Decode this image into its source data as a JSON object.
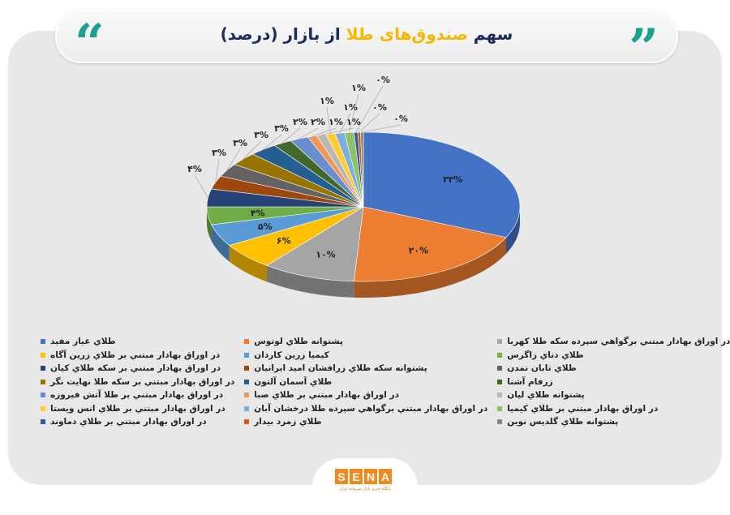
{
  "header": {
    "title_prefix": "سهم",
    "title_highlight": "صندوق‌های طلا",
    "title_suffix": "از بازار (درصد)"
  },
  "footer": {
    "logo_letters": [
      "S",
      "E",
      "N",
      "A"
    ],
    "logo_text": "SENA",
    "logo_subtitle": "پایگاه خبری بازار سرمایه ایران"
  },
  "chart_data": {
    "type": "pie",
    "title": "سهم صندوق‌های طلا از بازار (درصد)",
    "style": "3d",
    "legend_position": "bottom",
    "categories": [
      "طلاي عيار مفيد",
      "پشتوانه طلاي لوتوس",
      "در اوراق بهادار مبتني برگواهي سپرده سكه طلا كهربا",
      "در اوراق بهادار مبتني بر طلاي زرين آگاه",
      "كيميا زرين كاردان",
      "طلاي دناي زاگرس",
      "در اوراق بهادار مبتني بر سكه طلاي كيان",
      "پشتوانه سكه طلاي زرافشان اميد ايرانيان",
      "طلاي تابان تمدن",
      "در اوراق بهادار مبتني بر سكه طلا نهايت نگر",
      "طلاي آسمان آلتون",
      "زرفام آشنا",
      "در اوراق بهادار مبتني بر طلا آتش فيروزه",
      "در اوراق بهادار مبتني بر طلاي صبا",
      "پشتوانه طلاي ليان",
      "در اوراق بهادار مبتني بر طلاي انس ويستا",
      "در اوراق بهادار مبتني برگواهي سپرده طلا درخشان آبان",
      "در اوراق بهادار مبتني بر طلاي كيميا",
      "در اوراق بهادار مبتني بر طلاي دماوند",
      "طلاي زمرد بيدار",
      "پشتوانه طلاي گلديس نوين"
    ],
    "values": [
      33,
      20,
      10,
      6,
      5,
      4,
      4,
      3,
      3,
      3,
      3,
      2,
      2,
      1,
      1,
      1,
      1,
      1,
      0.4,
      0.3,
      0.3
    ],
    "data_labels": [
      "۳۳%",
      "۲۰%",
      "۱۰%",
      "۶%",
      "۵%",
      "۴%",
      "۴%",
      "۳%",
      "۳%",
      "۳%",
      "۳%",
      "۲%",
      "۲%",
      "۱%",
      "۱%",
      "۱%",
      "۱%",
      "۱%",
      "۰%",
      "۰%",
      "۰%"
    ],
    "colors": [
      "#4472C4",
      "#ED7D31",
      "#A5A5A5",
      "#FFC000",
      "#5B9BD5",
      "#70AD47",
      "#264478",
      "#9E480E",
      "#636363",
      "#997300",
      "#255E91",
      "#43682B",
      "#698ED0",
      "#F1975A",
      "#B7B7B7",
      "#FFCD33",
      "#7CAFDD",
      "#8CC168",
      "#335AA1",
      "#D26012",
      "#848484"
    ]
  }
}
